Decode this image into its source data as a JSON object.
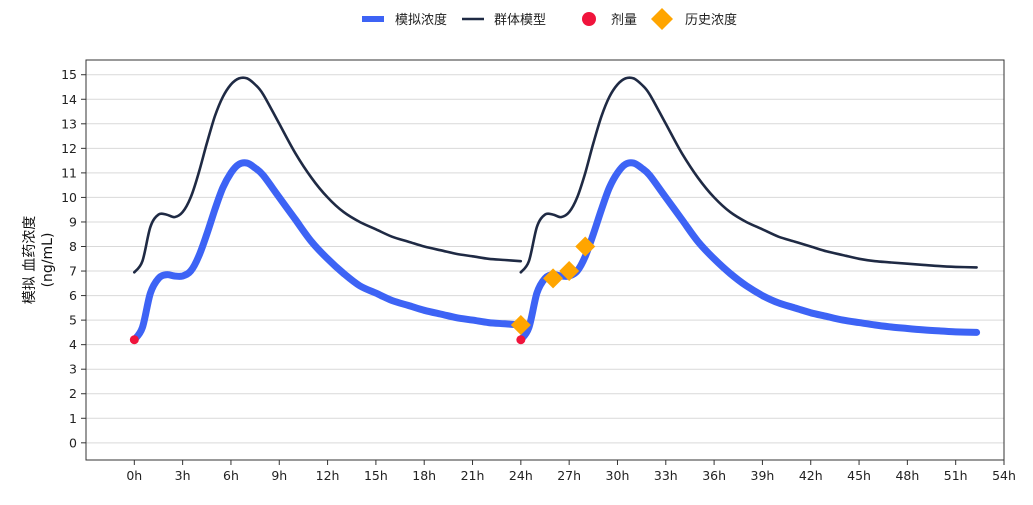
{
  "chart_data": {
    "type": "line",
    "ylabel": "模拟 血药浓度",
    "ylabel_unit": "(ng/mL)",
    "xlim": [
      -3,
      54
    ],
    "ylim": [
      -0.7,
      15.6
    ],
    "x_ticks": [
      0,
      3,
      6,
      9,
      12,
      15,
      18,
      21,
      24,
      27,
      30,
      33,
      36,
      39,
      42,
      45,
      48,
      51,
      54
    ],
    "x_tick_labels": [
      "0h",
      "3h",
      "6h",
      "9h",
      "12h",
      "15h",
      "18h",
      "21h",
      "24h",
      "27h",
      "30h",
      "33h",
      "36h",
      "39h",
      "42h",
      "45h",
      "48h",
      "51h",
      "54h"
    ],
    "y_ticks": [
      0,
      1,
      2,
      3,
      4,
      5,
      6,
      7,
      8,
      9,
      10,
      11,
      12,
      13,
      14,
      15
    ],
    "y_tick_labels": [
      "0",
      "1",
      "2",
      "3",
      "4",
      "5",
      "6",
      "7",
      "8",
      "9",
      "10",
      "11",
      "12",
      "13",
      "14",
      "15"
    ],
    "grid": "horizontal",
    "legend_position": "top-center",
    "legend": [
      {
        "label": "模拟浓度",
        "symbol": "thick-line",
        "color": "#3D63F5"
      },
      {
        "label": "群体模型",
        "symbol": "line",
        "color": "#1F2A44"
      },
      {
        "label": "剂量",
        "symbol": "circle",
        "color": "#F0143C"
      },
      {
        "label": "历史浓度",
        "symbol": "diamond",
        "color": "#FFA500"
      }
    ],
    "series": [
      {
        "name": "模拟浓度",
        "color": "#3D63F5",
        "points": [
          [
            0,
            4.2
          ],
          [
            0.5,
            4.7
          ],
          [
            1,
            6.1
          ],
          [
            1.5,
            6.7
          ],
          [
            2,
            6.85
          ],
          [
            2.5,
            6.8
          ],
          [
            3,
            6.8
          ],
          [
            3.5,
            7.0
          ],
          [
            4,
            7.6
          ],
          [
            4.5,
            8.5
          ],
          [
            5,
            9.5
          ],
          [
            5.5,
            10.4
          ],
          [
            6,
            11.0
          ],
          [
            6.5,
            11.35
          ],
          [
            7,
            11.4
          ],
          [
            7.5,
            11.2
          ],
          [
            8,
            10.9
          ],
          [
            9,
            10.0
          ],
          [
            10,
            9.1
          ],
          [
            11,
            8.2
          ],
          [
            12,
            7.5
          ],
          [
            13,
            6.9
          ],
          [
            14,
            6.4
          ],
          [
            15,
            6.1
          ],
          [
            16,
            5.8
          ],
          [
            17,
            5.6
          ],
          [
            18,
            5.4
          ],
          [
            19,
            5.25
          ],
          [
            20,
            5.1
          ],
          [
            21,
            5.0
          ],
          [
            22,
            4.9
          ],
          [
            23,
            4.85
          ],
          [
            24,
            4.8
          ],
          [
            24,
            4.2
          ],
          [
            24.5,
            4.7
          ],
          [
            25,
            6.1
          ],
          [
            25.5,
            6.7
          ],
          [
            26,
            6.85
          ],
          [
            26.5,
            6.8
          ],
          [
            27,
            6.8
          ],
          [
            27.5,
            7.0
          ],
          [
            28,
            7.6
          ],
          [
            28.5,
            8.5
          ],
          [
            29,
            9.5
          ],
          [
            29.5,
            10.4
          ],
          [
            30,
            11.0
          ],
          [
            30.5,
            11.35
          ],
          [
            31,
            11.4
          ],
          [
            31.5,
            11.2
          ],
          [
            32,
            10.9
          ],
          [
            33,
            10.0
          ],
          [
            34,
            9.1
          ],
          [
            35,
            8.2
          ],
          [
            36,
            7.5
          ],
          [
            37,
            6.9
          ],
          [
            38,
            6.4
          ],
          [
            39,
            6.0
          ],
          [
            40,
            5.7
          ],
          [
            41,
            5.5
          ],
          [
            42,
            5.3
          ],
          [
            43,
            5.15
          ],
          [
            44,
            5.0
          ],
          [
            45,
            4.9
          ],
          [
            46,
            4.8
          ],
          [
            47,
            4.72
          ],
          [
            48,
            4.66
          ],
          [
            49,
            4.6
          ],
          [
            50,
            4.56
          ],
          [
            51,
            4.52
          ],
          [
            52.3,
            4.5
          ]
        ]
      },
      {
        "name": "群体模型",
        "color": "#1F2A44",
        "points": [
          [
            0,
            6.95
          ],
          [
            0.5,
            7.4
          ],
          [
            1,
            8.8
          ],
          [
            1.5,
            9.3
          ],
          [
            2,
            9.3
          ],
          [
            2.5,
            9.2
          ],
          [
            3,
            9.4
          ],
          [
            3.5,
            10.0
          ],
          [
            4,
            11.0
          ],
          [
            4.5,
            12.2
          ],
          [
            5,
            13.3
          ],
          [
            5.5,
            14.1
          ],
          [
            6,
            14.6
          ],
          [
            6.5,
            14.85
          ],
          [
            7,
            14.85
          ],
          [
            7.5,
            14.6
          ],
          [
            8,
            14.2
          ],
          [
            9,
            13.0
          ],
          [
            10,
            11.8
          ],
          [
            11,
            10.8
          ],
          [
            12,
            10.0
          ],
          [
            13,
            9.4
          ],
          [
            14,
            9.0
          ],
          [
            15,
            8.7
          ],
          [
            16,
            8.4
          ],
          [
            17,
            8.2
          ],
          [
            18,
            8.0
          ],
          [
            19,
            7.85
          ],
          [
            20,
            7.7
          ],
          [
            21,
            7.6
          ],
          [
            22,
            7.5
          ],
          [
            23,
            7.45
          ],
          [
            24,
            7.4
          ],
          [
            24,
            6.95
          ],
          [
            24.5,
            7.4
          ],
          [
            25,
            8.8
          ],
          [
            25.5,
            9.3
          ],
          [
            26,
            9.3
          ],
          [
            26.5,
            9.2
          ],
          [
            27,
            9.4
          ],
          [
            27.5,
            10.0
          ],
          [
            28,
            11.0
          ],
          [
            28.5,
            12.2
          ],
          [
            29,
            13.3
          ],
          [
            29.5,
            14.1
          ],
          [
            30,
            14.6
          ],
          [
            30.5,
            14.85
          ],
          [
            31,
            14.85
          ],
          [
            31.5,
            14.6
          ],
          [
            32,
            14.2
          ],
          [
            33,
            13.0
          ],
          [
            34,
            11.8
          ],
          [
            35,
            10.8
          ],
          [
            36,
            10.0
          ],
          [
            37,
            9.4
          ],
          [
            38,
            9.0
          ],
          [
            39,
            8.7
          ],
          [
            40,
            8.4
          ],
          [
            41,
            8.2
          ],
          [
            42,
            8.0
          ],
          [
            43,
            7.8
          ],
          [
            44,
            7.65
          ],
          [
            45,
            7.5
          ],
          [
            46,
            7.4
          ],
          [
            47,
            7.35
          ],
          [
            48,
            7.3
          ],
          [
            49,
            7.25
          ],
          [
            50,
            7.2
          ],
          [
            51,
            7.17
          ],
          [
            52.3,
            7.15
          ]
        ]
      }
    ],
    "doses": [
      [
        0,
        4.2
      ],
      [
        24,
        4.2
      ]
    ],
    "history": [
      [
        24,
        4.8
      ],
      [
        26,
        6.7
      ],
      [
        27,
        7.0
      ],
      [
        28,
        8.0
      ]
    ]
  }
}
